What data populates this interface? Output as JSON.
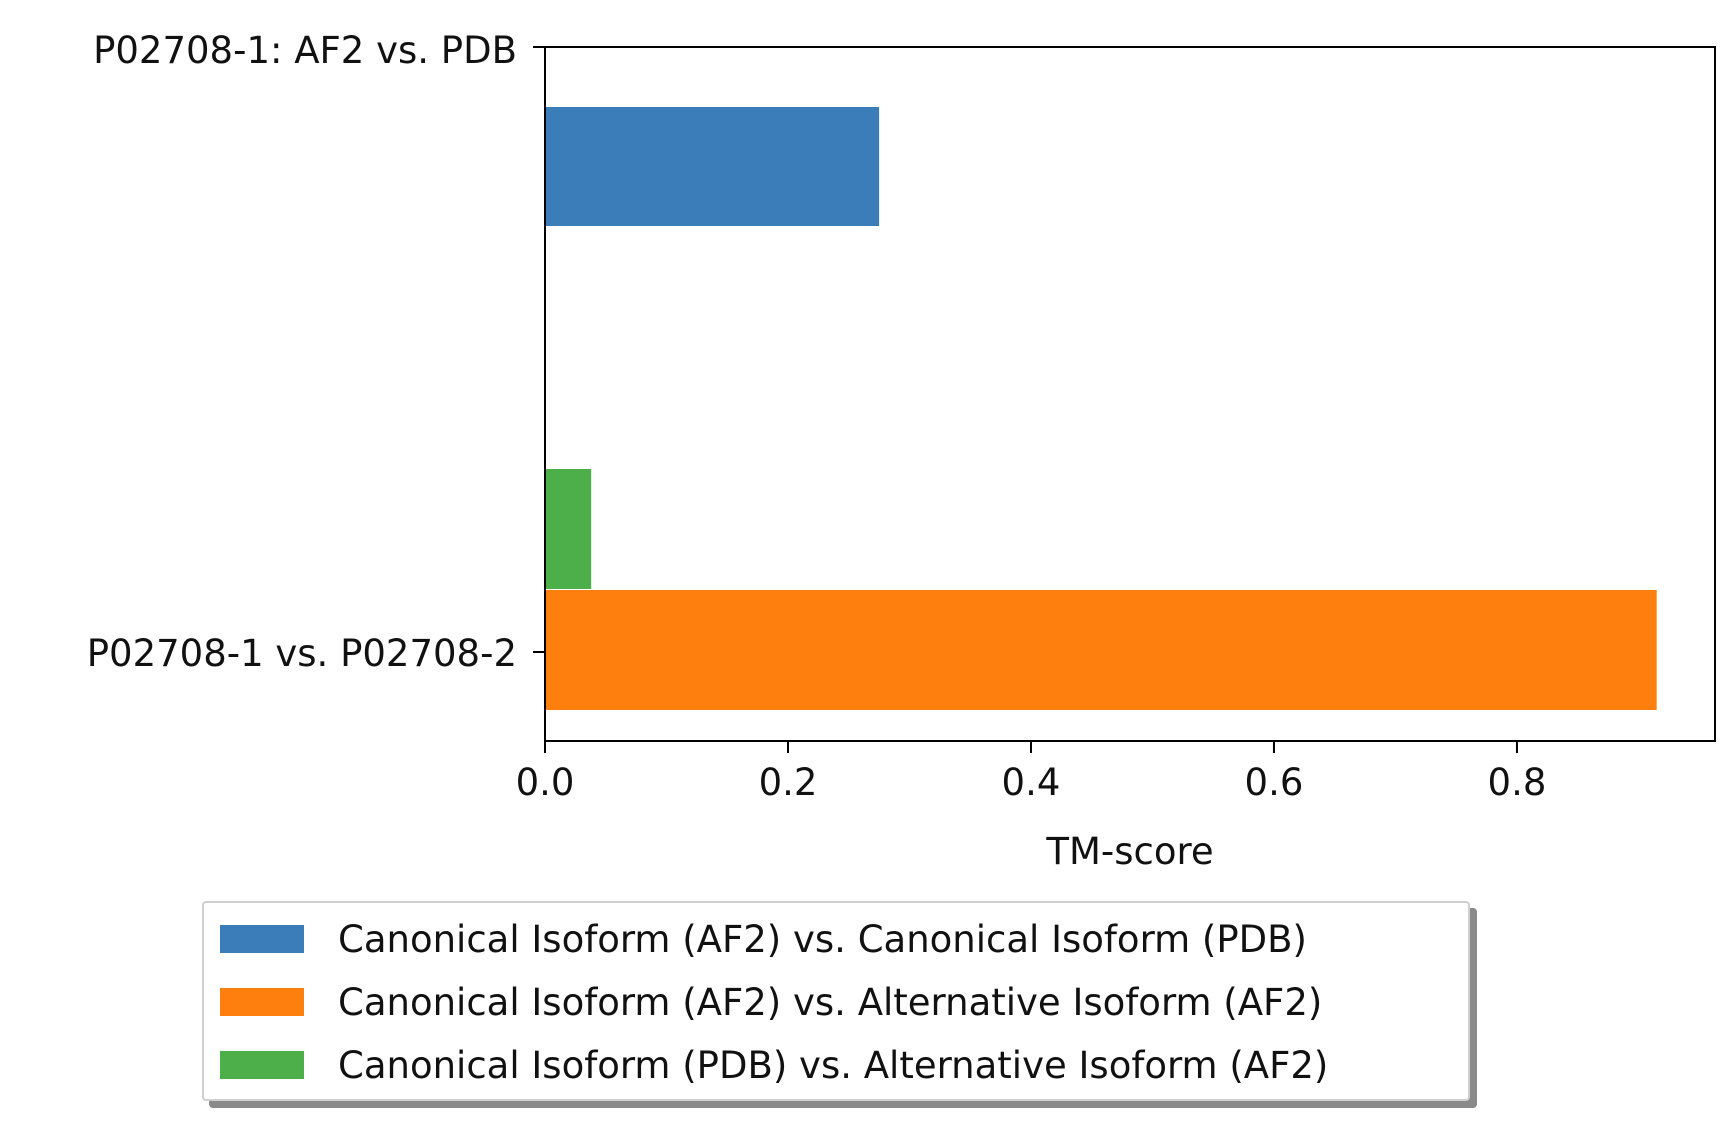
{
  "chart_data": {
    "type": "bar",
    "orientation": "horizontal",
    "categories": [
      "P02708-1: AF2 vs. PDB",
      "P02708-1 vs. P02708-2"
    ],
    "series": [
      {
        "name": "Canonical Isoform (AF2) vs. Canonical Isoform (PDB)",
        "color": "#3a7db8",
        "values": [
          0.275,
          null
        ]
      },
      {
        "name": "Canonical Isoform (AF2) vs. Alternative Isoform (AF2)",
        "color": "#ff7f0e",
        "values": [
          null,
          0.915
        ]
      },
      {
        "name": "Canonical Isoform (PDB) vs. Alternative Isoform (AF2)",
        "color": "#4daf4a",
        "values": [
          null,
          0.038
        ]
      }
    ],
    "xlabel": "TM-score",
    "xlim": [
      0,
      0.963
    ],
    "xticks": [
      0.0,
      0.2,
      0.4,
      0.6,
      0.8
    ],
    "xtick_labels": [
      "0.0",
      "0.2",
      "0.4",
      "0.6",
      "0.8"
    ],
    "legend_position": "bottom-center"
  }
}
